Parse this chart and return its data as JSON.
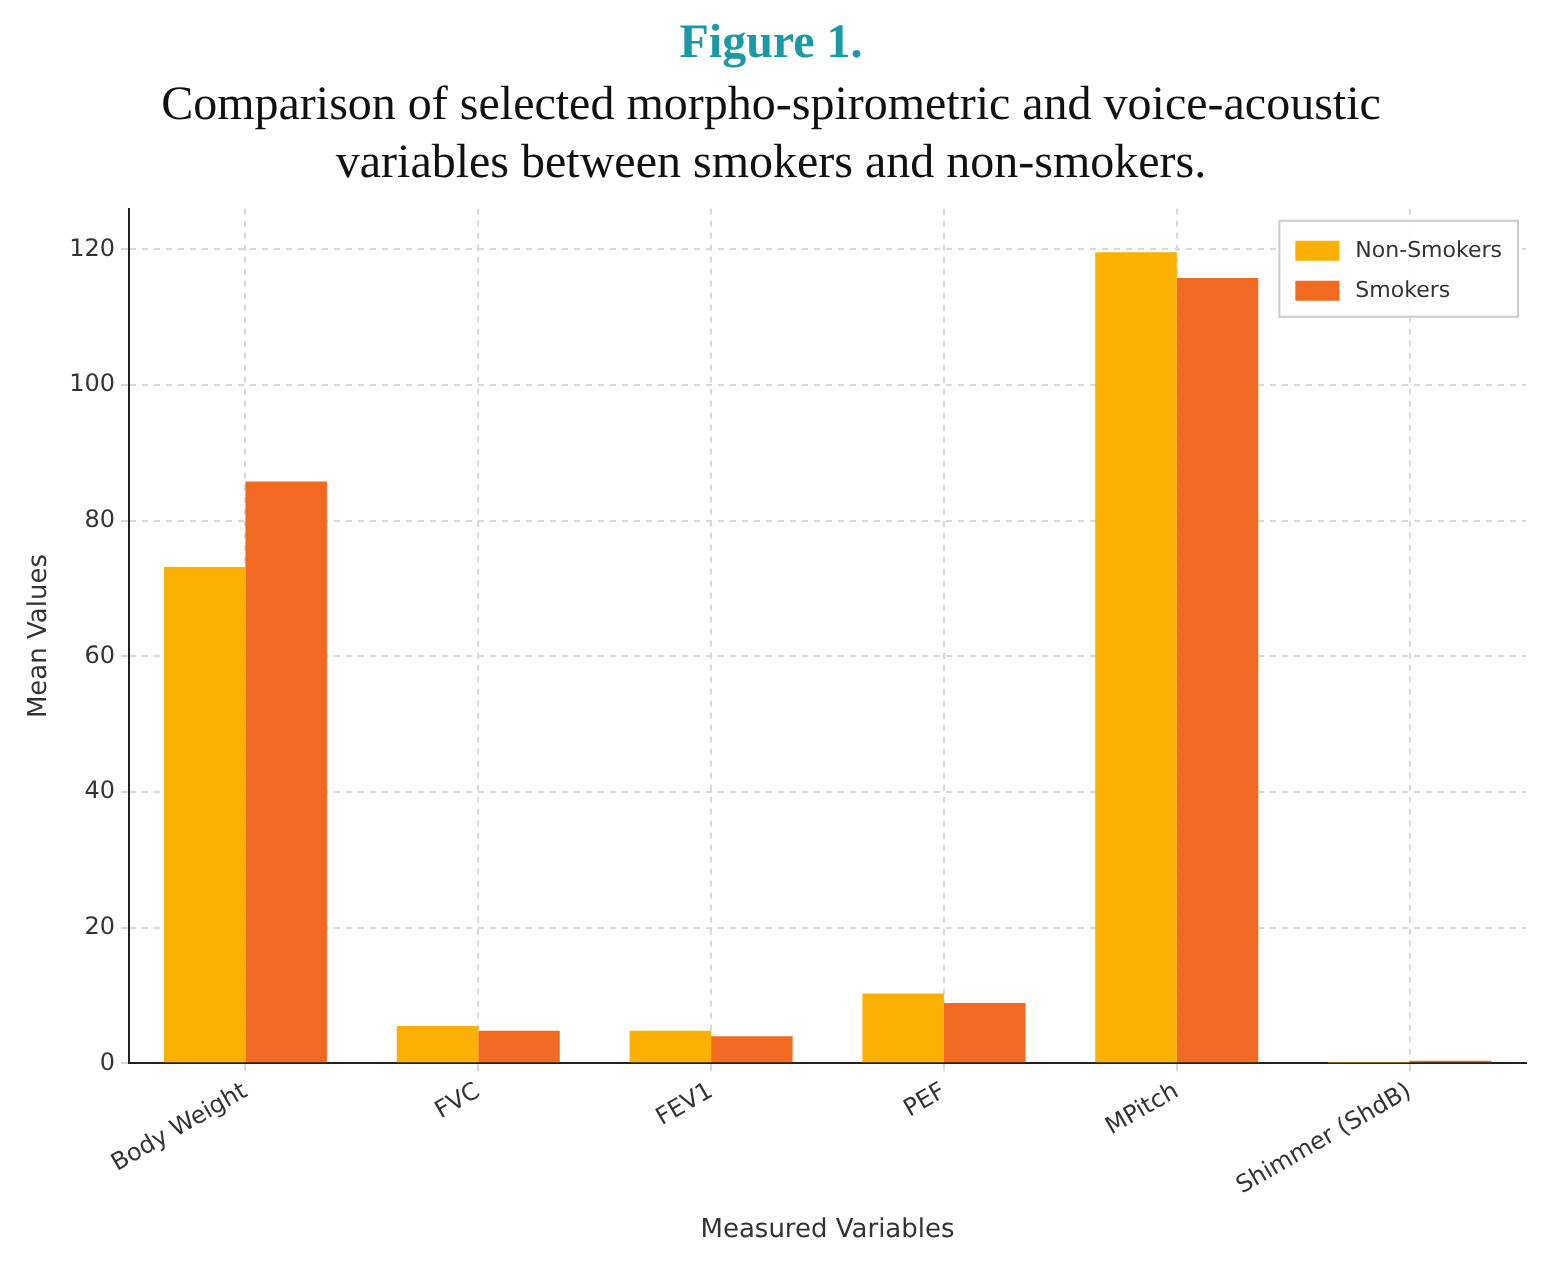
{
  "chart_data": {
    "type": "bar",
    "title": "Figure 1.",
    "subtitle": "Comparison of selected morpho-spirometric and voice-acoustic variables between smokers and non-smokers.",
    "xlabel": "Measured Variables",
    "ylabel": "Mean Values",
    "categories": [
      "Body Weight",
      "FVC",
      "FEV1",
      "PEF",
      "MPitch",
      "Shimmer (ShdB)"
    ],
    "series": [
      {
        "name": "Non-Smokers",
        "color": "#fbb003",
        "values": [
          73.2,
          5.5,
          4.8,
          10.3,
          119.6,
          0.1
        ]
      },
      {
        "name": "Smokers",
        "color": "#f26a22",
        "values": [
          85.8,
          4.8,
          4.0,
          8.9,
          115.8,
          0.4
        ]
      }
    ],
    "ylim": [
      0,
      126
    ],
    "yticks": [
      0,
      20,
      40,
      60,
      80,
      100,
      120
    ],
    "grid": true,
    "legend": "top right"
  }
}
